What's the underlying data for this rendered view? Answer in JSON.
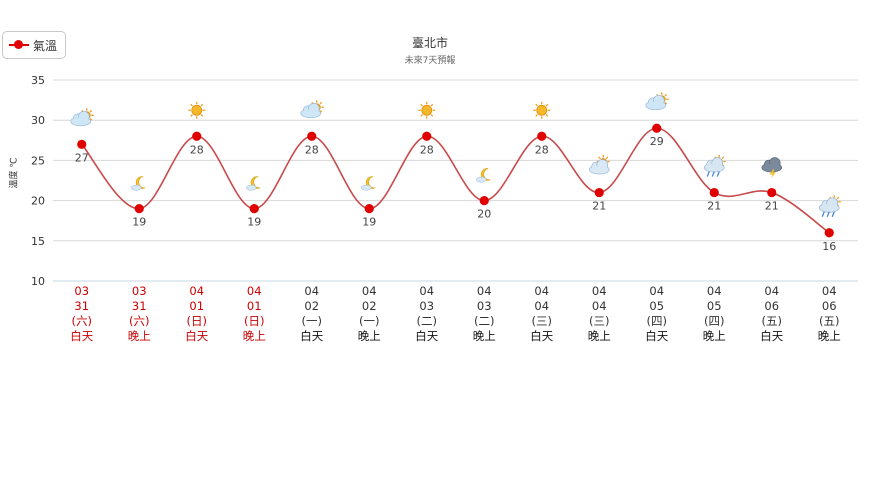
{
  "legend": {
    "label": "氣溫"
  },
  "chart_data": {
    "type": "line",
    "title": "臺北市",
    "subtitle": "未來7天預報",
    "ylabel": "溫度 ℃",
    "ylim": [
      10,
      35
    ],
    "yticks": [
      10,
      15,
      20,
      25,
      30,
      35
    ],
    "grid": true,
    "legend_position": "top-left",
    "colors": {
      "series": "#e00000",
      "line": "#c84a4a",
      "weekend": "#cc0000",
      "weekday": "#333333",
      "grid": "#d8d8d8"
    },
    "series": [
      {
        "name": "氣溫",
        "values": [
          27,
          19,
          28,
          19,
          28,
          19,
          28,
          20,
          28,
          21,
          29,
          21,
          21,
          16
        ]
      }
    ],
    "categories": [
      {
        "date": "03",
        "day": "31",
        "weekday": "(六)",
        "period": "白天",
        "weekend": true,
        "icon": "cloudy-day-icon"
      },
      {
        "date": "03",
        "day": "31",
        "weekday": "(六)",
        "period": "晚上",
        "weekend": true,
        "icon": "moon-cloud-icon"
      },
      {
        "date": "04",
        "day": "01",
        "weekday": "(日)",
        "period": "白天",
        "weekend": true,
        "icon": "sunny-icon"
      },
      {
        "date": "04",
        "day": "01",
        "weekday": "(日)",
        "period": "晚上",
        "weekend": true,
        "icon": "moon-cloud-icon"
      },
      {
        "date": "04",
        "day": "02",
        "weekday": "(一)",
        "period": "白天",
        "weekend": false,
        "icon": "cloudy-day-icon"
      },
      {
        "date": "04",
        "day": "02",
        "weekday": "(一)",
        "period": "晚上",
        "weekend": false,
        "icon": "moon-cloud-icon"
      },
      {
        "date": "04",
        "day": "03",
        "weekday": "(二)",
        "period": "白天",
        "weekend": false,
        "icon": "sunny-icon"
      },
      {
        "date": "04",
        "day": "03",
        "weekday": "(二)",
        "period": "晚上",
        "weekend": false,
        "icon": "moon-cloud-icon"
      },
      {
        "date": "04",
        "day": "04",
        "weekday": "(三)",
        "period": "白天",
        "weekend": false,
        "icon": "sunny-icon"
      },
      {
        "date": "04",
        "day": "04",
        "weekday": "(三)",
        "period": "晚上",
        "weekend": false,
        "icon": "cloudy-icon"
      },
      {
        "date": "04",
        "day": "05",
        "weekday": "(四)",
        "period": "白天",
        "weekend": false,
        "icon": "cloudy-day-icon"
      },
      {
        "date": "04",
        "day": "05",
        "weekday": "(四)",
        "period": "晚上",
        "weekend": false,
        "icon": "rain-icon"
      },
      {
        "date": "04",
        "day": "06",
        "weekday": "(五)",
        "period": "白天",
        "weekend": false,
        "icon": "thunderstorm-icon"
      },
      {
        "date": "04",
        "day": "06",
        "weekday": "(五)",
        "period": "晚上",
        "weekend": false,
        "icon": "rain-icon"
      }
    ]
  }
}
